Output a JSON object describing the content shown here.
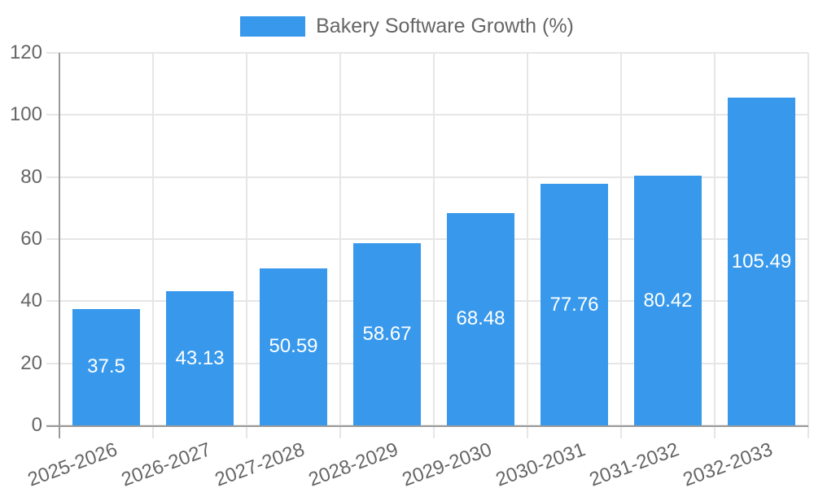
{
  "chart_data": {
    "type": "bar",
    "title": "Bakery Software Growth (%)",
    "legend": {
      "label": "Bakery Software Growth (%)",
      "position": "top"
    },
    "categories": [
      "2025-2026",
      "2026-2027",
      "2027-2028",
      "2028-2029",
      "2029-2030",
      "2030-2031",
      "2031-2032",
      "2032-2033"
    ],
    "values": [
      37.5,
      43.13,
      50.59,
      58.67,
      68.48,
      77.76,
      80.42,
      105.49
    ],
    "value_labels": [
      "37.5",
      "43.13",
      "50.59",
      "58.67",
      "68.48",
      "77.76",
      "80.42",
      "105.49"
    ],
    "xlabel": "",
    "ylabel": "",
    "ylim": [
      0,
      120
    ],
    "yticks": [
      0,
      20,
      40,
      60,
      80,
      100,
      120
    ],
    "grid": true,
    "colors": {
      "bar": "#3899EC",
      "value_label": "#FFFFFF",
      "grid": "#E6E6E6",
      "axis": "#9A9A9A",
      "tick_label": "#666666",
      "background": "#FFFFFF"
    }
  }
}
